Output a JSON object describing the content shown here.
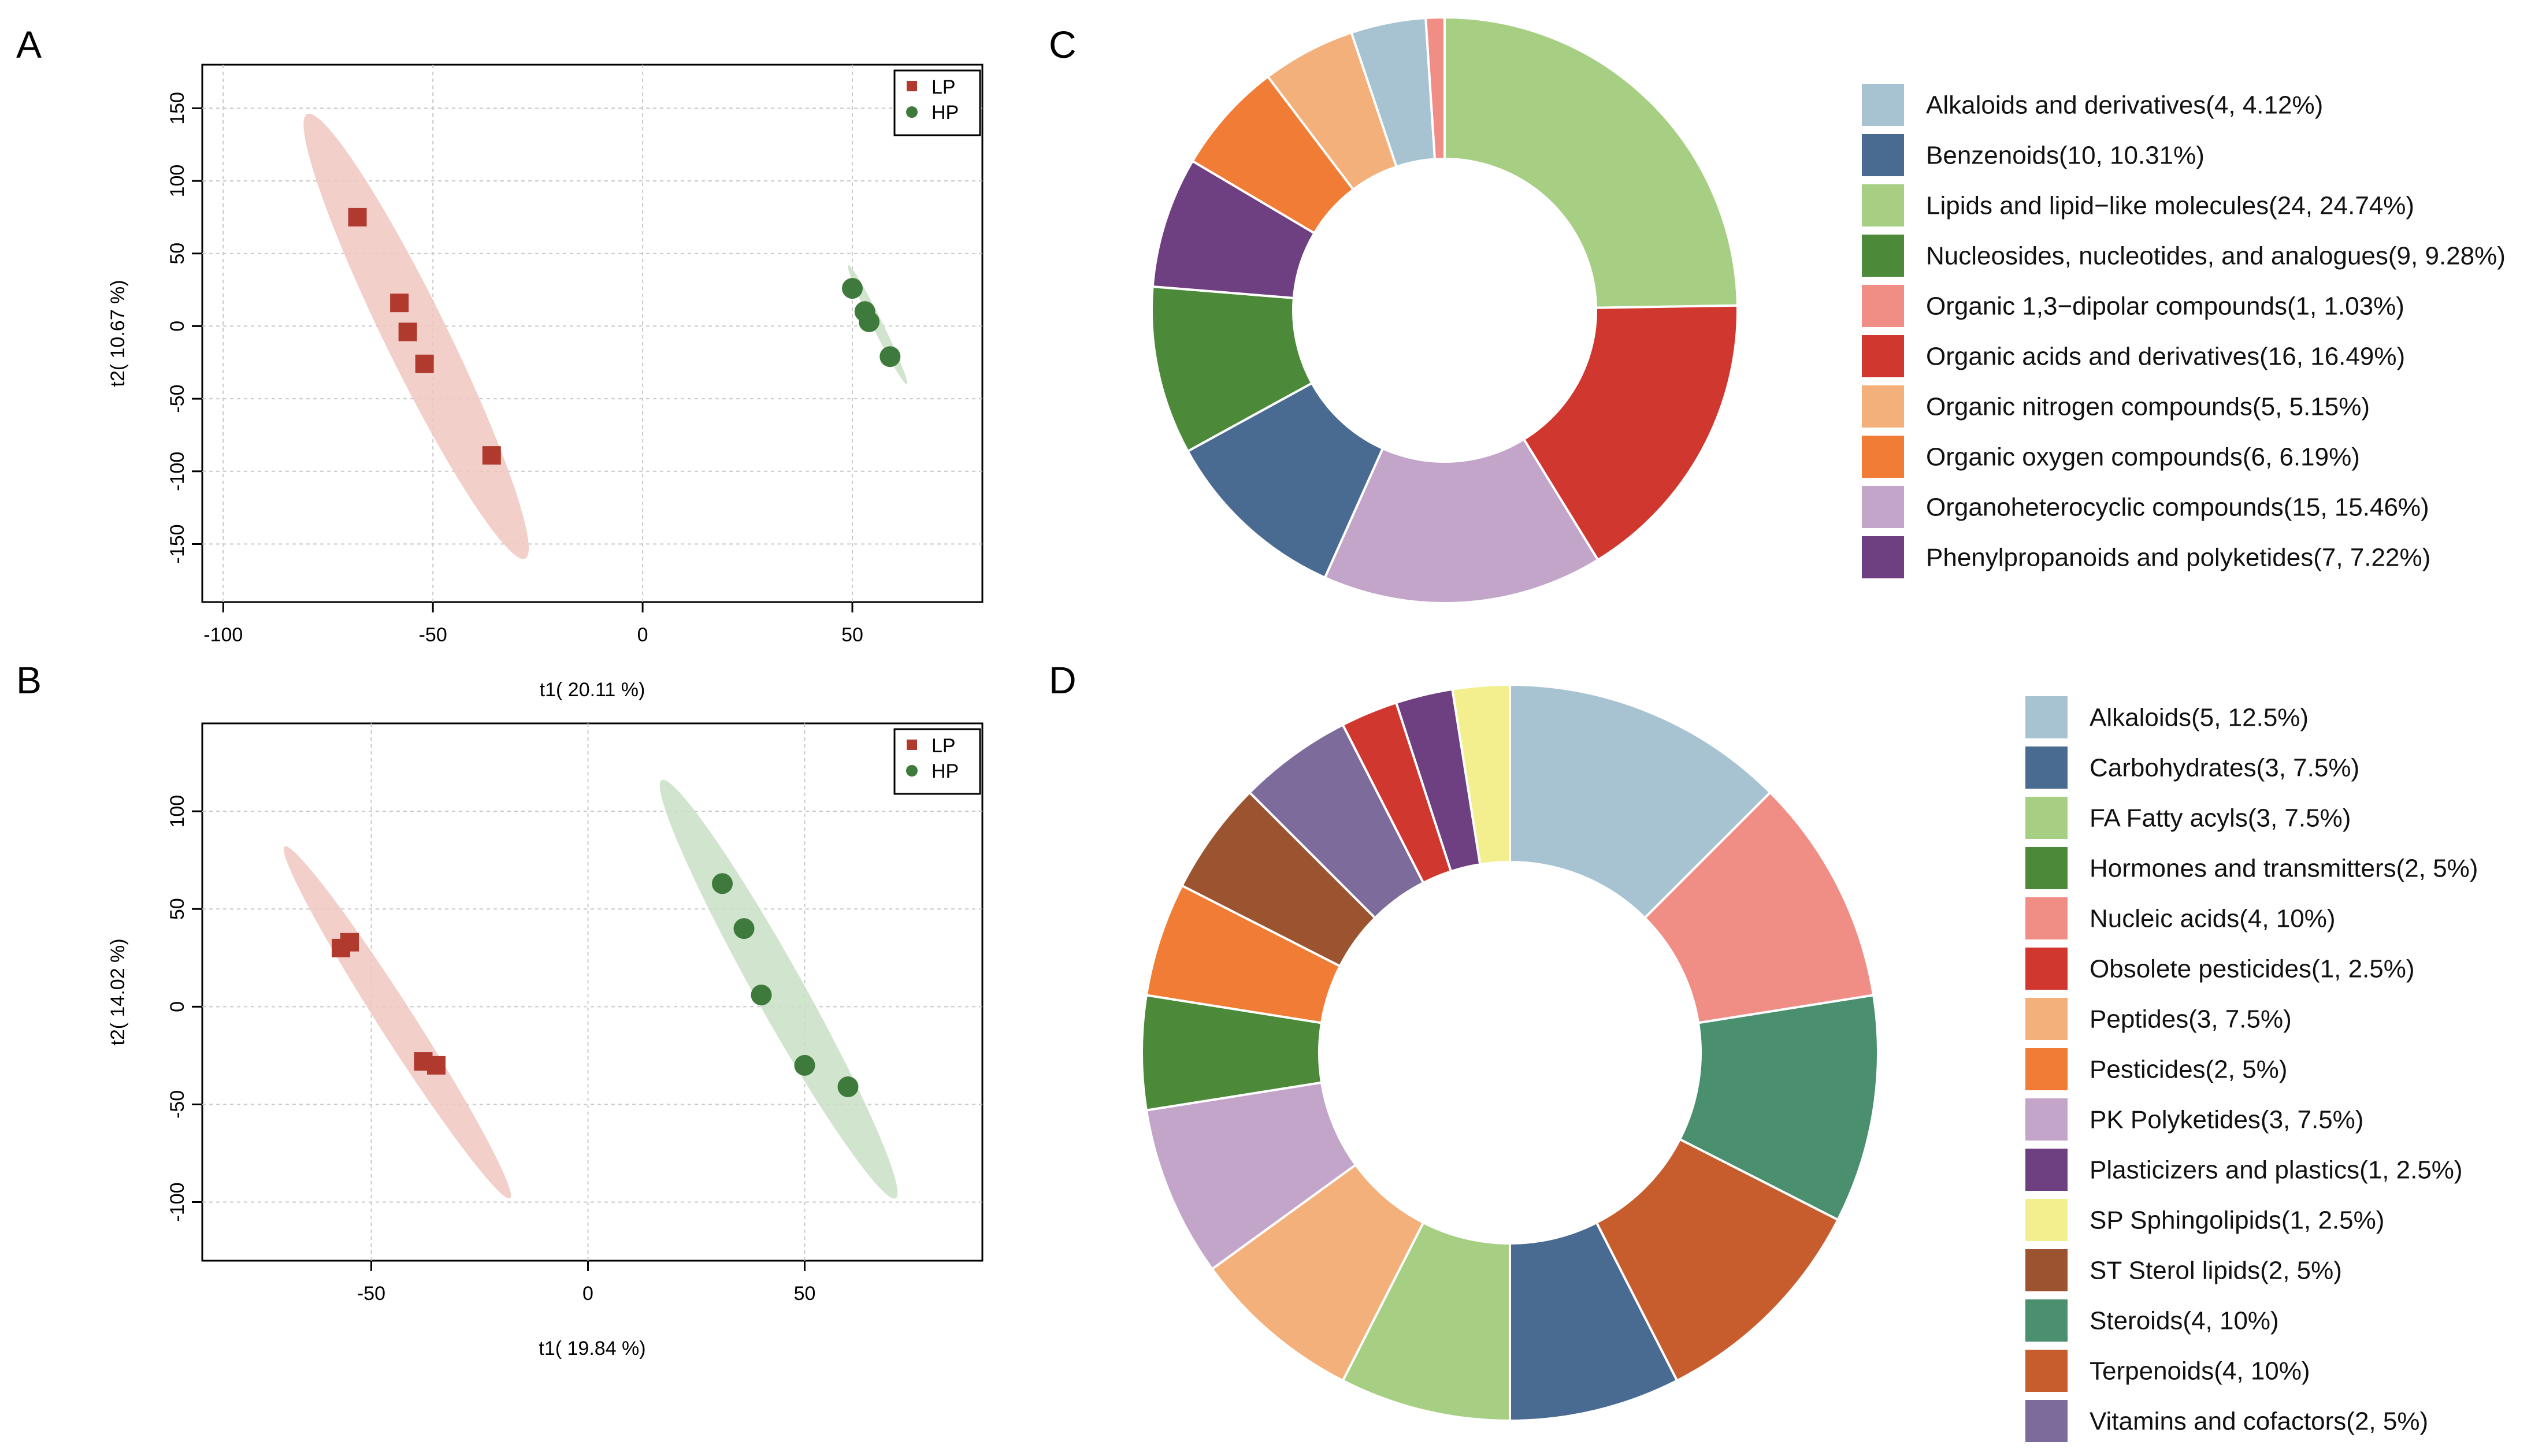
{
  "colors": {
    "LP": "#b03a2e",
    "HP": "#3d7a3b",
    "LP_ellipse": "#f0c7c0",
    "HP_ellipse": "#c9dfc6"
  },
  "panel_labels": [
    "A",
    "B",
    "C",
    "D"
  ],
  "chart_data": [
    {
      "panel": "A",
      "type": "scatter",
      "xlabel": "t1( 20.11 %)",
      "ylabel": "t2( 10.67 %)",
      "xlim": [
        -105,
        81
      ],
      "ylim": [
        -190,
        180
      ],
      "xticks": [
        "-100",
        "-50",
        "0",
        "50"
      ],
      "yticks": [
        "-150",
        "-100",
        "-50",
        "0",
        "50",
        "100",
        "150"
      ],
      "xtick_values": [
        -100,
        -50,
        0,
        50
      ],
      "ytick_values": [
        -150,
        -100,
        -50,
        0,
        50,
        100,
        150
      ],
      "legend": [
        "LP",
        "HP"
      ],
      "series": [
        {
          "name": "LP",
          "x": [
            -68,
            -58,
            -56,
            -52,
            -36
          ],
          "y": [
            75,
            16,
            -4,
            -26,
            -89
          ]
        },
        {
          "name": "HP",
          "x": [
            50,
            53,
            54,
            59
          ],
          "y": [
            26,
            10,
            3,
            -21
          ]
        }
      ],
      "ellipses": [
        {
          "group": "LP",
          "center": [
            -54,
            -7
          ],
          "end": [
            -28,
            -160
          ],
          "minor": 18
        },
        {
          "group": "HP",
          "center": [
            56,
            1
          ],
          "end": [
            63,
            -40
          ],
          "minor": 3
        }
      ]
    },
    {
      "panel": "B",
      "type": "scatter",
      "xlabel": "t1( 19.84 %)",
      "ylabel": "t2( 14.02 %)",
      "xlim": [
        -89,
        91
      ],
      "ylim": [
        -130,
        145
      ],
      "xticks": [
        "-50",
        "0",
        "50"
      ],
      "yticks": [
        "-100",
        "-50",
        "0",
        "50",
        "100"
      ],
      "xtick_values": [
        -50,
        0,
        50
      ],
      "ytick_values": [
        -100,
        -50,
        0,
        50,
        100
      ],
      "legend": [
        "LP",
        "HP"
      ],
      "series": [
        {
          "name": "LP",
          "x": [
            -57,
            -55,
            -38,
            -35
          ],
          "y": [
            30,
            33,
            -28,
            -30
          ]
        },
        {
          "name": "HP",
          "x": [
            31,
            36,
            40,
            50,
            60
          ],
          "y": [
            63,
            40,
            6,
            -30,
            -41
          ]
        }
      ],
      "ellipses": [
        {
          "group": "LP",
          "center": [
            -44,
            -8
          ],
          "end": [
            -18,
            -98
          ],
          "minor": 10
        },
        {
          "group": "HP",
          "center": [
            44,
            9
          ],
          "end": [
            71,
            -98
          ],
          "minor": 14
        }
      ]
    },
    {
      "panel": "C",
      "type": "pie",
      "donut": true,
      "categories": [
        "Alkaloids and derivatives(4, 4.12%)",
        "Benzenoids(10, 10.31%)",
        "Lipids and lipid−like molecules(24, 24.74%)",
        "Nucleosides, nucleotides, and analogues(9, 9.28%)",
        "Organic 1,3−dipolar compounds(1, 1.03%)",
        "Organic acids and derivatives(16, 16.49%)",
        "Organic nitrogen compounds(5, 5.15%)",
        "Organic oxygen compounds(6, 6.19%)",
        "Organoheterocyclic compounds(15, 15.46%)",
        "Phenylpropanoids and polyketides(7, 7.22%)"
      ],
      "values": [
        4,
        10,
        24,
        9,
        1,
        16,
        5,
        6,
        15,
        7
      ],
      "colors": [
        "#a7c3d1",
        "#4a6b91",
        "#a7cf83",
        "#4c8a3a",
        "#f08e86",
        "#cf372f",
        "#f4b07b",
        "#f07c35",
        "#c2a5c8",
        "#6e3f81"
      ],
      "draw_order": [
        2,
        5,
        8,
        1,
        3,
        9,
        7,
        6,
        0,
        4
      ]
    },
    {
      "panel": "D",
      "type": "pie",
      "donut": true,
      "categories": [
        "Alkaloids(5, 12.5%)",
        "Carbohydrates(3, 7.5%)",
        "FA  Fatty acyls(3, 7.5%)",
        "Hormones and transmitters(2, 5%)",
        "Nucleic acids(4, 10%)",
        "Obsolete pesticides(1, 2.5%)",
        "Peptides(3, 7.5%)",
        "Pesticides(2, 5%)",
        "PK  Polyketides(3, 7.5%)",
        "Plasticizers and plastics(1, 2.5%)",
        "SP  Sphingolipids(1, 2.5%)",
        "ST  Sterol lipids(2, 5%)",
        "Steroids(4, 10%)",
        "Terpenoids(4, 10%)",
        "Vitamins and cofactors(2, 5%)"
      ],
      "values": [
        5,
        3,
        3,
        2,
        4,
        1,
        3,
        2,
        3,
        1,
        1,
        2,
        4,
        4,
        2
      ],
      "colors": [
        "#a7c3d1",
        "#4a6b91",
        "#a7cf83",
        "#4c8a3a",
        "#f08e86",
        "#cf372f",
        "#f4b07b",
        "#f07c35",
        "#c2a5c8",
        "#6e3f81",
        "#f3ef8e",
        "#9c5430",
        "#4a8f6e",
        "#c75d2d",
        "#7d6b9b"
      ],
      "draw_order": [
        0,
        4,
        12,
        13,
        1,
        2,
        6,
        8,
        3,
        7,
        11,
        14,
        5,
        9,
        10
      ]
    }
  ]
}
